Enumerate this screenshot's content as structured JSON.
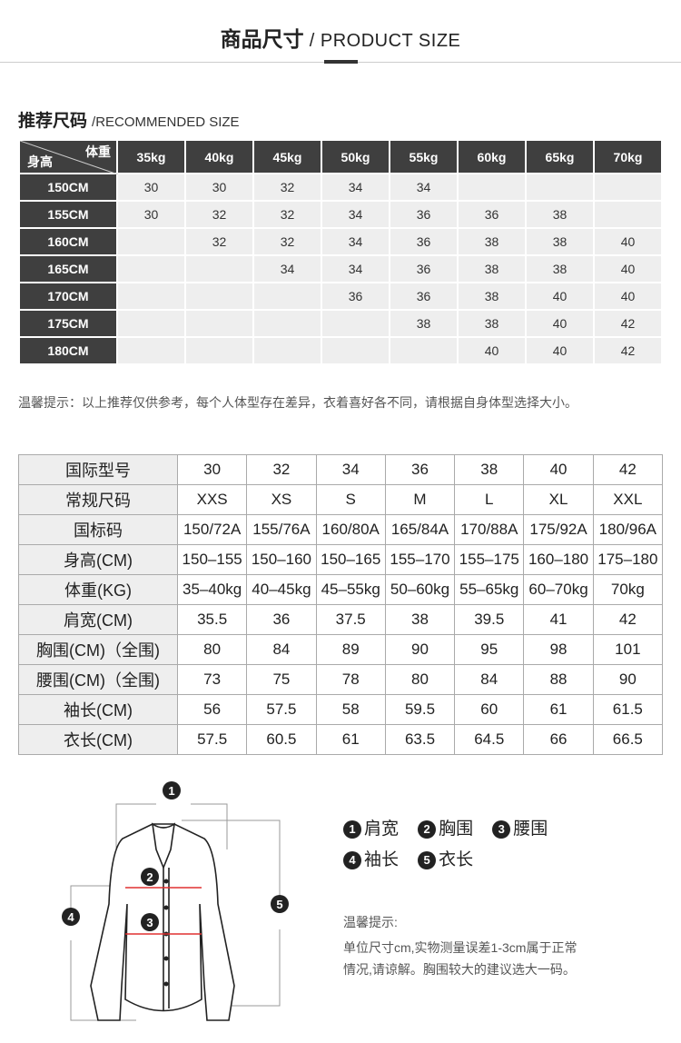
{
  "header": {
    "title_cn": "商品尺寸",
    "title_en": "/ PRODUCT SIZE"
  },
  "recommended": {
    "title_cn": "推荐尺码",
    "title_en": "/RECOMMENDED SIZE",
    "corner_weight": "体重",
    "corner_height": "身高",
    "weights": [
      "35kg",
      "40kg",
      "45kg",
      "50kg",
      "55kg",
      "60kg",
      "65kg",
      "70kg"
    ],
    "rows": [
      {
        "height": "150CM",
        "sizes": [
          "30",
          "30",
          "32",
          "34",
          "34",
          "",
          "",
          ""
        ]
      },
      {
        "height": "155CM",
        "sizes": [
          "30",
          "32",
          "32",
          "34",
          "36",
          "36",
          "38",
          ""
        ]
      },
      {
        "height": "160CM",
        "sizes": [
          "",
          "32",
          "32",
          "34",
          "36",
          "38",
          "38",
          "40"
        ]
      },
      {
        "height": "165CM",
        "sizes": [
          "",
          "",
          "34",
          "34",
          "36",
          "38",
          "38",
          "40"
        ]
      },
      {
        "height": "170CM",
        "sizes": [
          "",
          "",
          "",
          "36",
          "36",
          "38",
          "40",
          "40"
        ]
      },
      {
        "height": "175CM",
        "sizes": [
          "",
          "",
          "",
          "",
          "38",
          "38",
          "40",
          "42"
        ]
      },
      {
        "height": "180CM",
        "sizes": [
          "",
          "",
          "",
          "",
          "",
          "40",
          "40",
          "42"
        ]
      }
    ],
    "note": "温馨提示：以上推荐仅供参考，每个人体型存在差异，衣着喜好各不同，请根据自身体型选择大小。"
  },
  "spec": {
    "rows": [
      {
        "label": "国际型号",
        "values": [
          "30",
          "32",
          "34",
          "36",
          "38",
          "40",
          "42"
        ]
      },
      {
        "label": "常规尺码",
        "values": [
          "XXS",
          "XS",
          "S",
          "M",
          "L",
          "XL",
          "XXL"
        ]
      },
      {
        "label": "国标码",
        "values": [
          "150/72A",
          "155/76A",
          "160/80A",
          "165/84A",
          "170/88A",
          "175/92A",
          "180/96A"
        ]
      },
      {
        "label": "身高(CM)",
        "values": [
          "150–155",
          "150–160",
          "150–165",
          "155–170",
          "155–175",
          "160–180",
          "175–180"
        ]
      },
      {
        "label": "体重(KG)",
        "values": [
          "35–40kg",
          "40–45kg",
          "45–55kg",
          "50–60kg",
          "55–65kg",
          "60–70kg",
          "70kg"
        ]
      },
      {
        "label": "肩宽(CM)",
        "values": [
          "35.5",
          "36",
          "37.5",
          "38",
          "39.5",
          "41",
          "42"
        ]
      },
      {
        "label": "胸围(CM)（全围)",
        "values": [
          "80",
          "84",
          "89",
          "90",
          "95",
          "98",
          "101"
        ]
      },
      {
        "label": "腰围(CM)（全围)",
        "values": [
          "73",
          "75",
          "78",
          "80",
          "84",
          "88",
          "90"
        ]
      },
      {
        "label": "袖长(CM)",
        "values": [
          "56",
          "57.5",
          "58",
          "59.5",
          "60",
          "61",
          "61.5"
        ]
      },
      {
        "label": "衣长(CM)",
        "values": [
          "57.5",
          "60.5",
          "61",
          "63.5",
          "64.5",
          "66",
          "66.5"
        ]
      }
    ]
  },
  "diagram": {
    "legend": [
      {
        "num": "1",
        "label": "肩宽"
      },
      {
        "num": "2",
        "label": "胸围"
      },
      {
        "num": "3",
        "label": "腰围"
      },
      {
        "num": "4",
        "label": "袖长"
      },
      {
        "num": "5",
        "label": "衣长"
      }
    ],
    "tip_title": "温馨提示:",
    "tip_line1": "单位尺寸cm,实物测量误差1-3cm属于正常",
    "tip_line2": "情况,请谅解。胸围较大的建议选大一码。",
    "measure_line_color": "#e03030"
  }
}
